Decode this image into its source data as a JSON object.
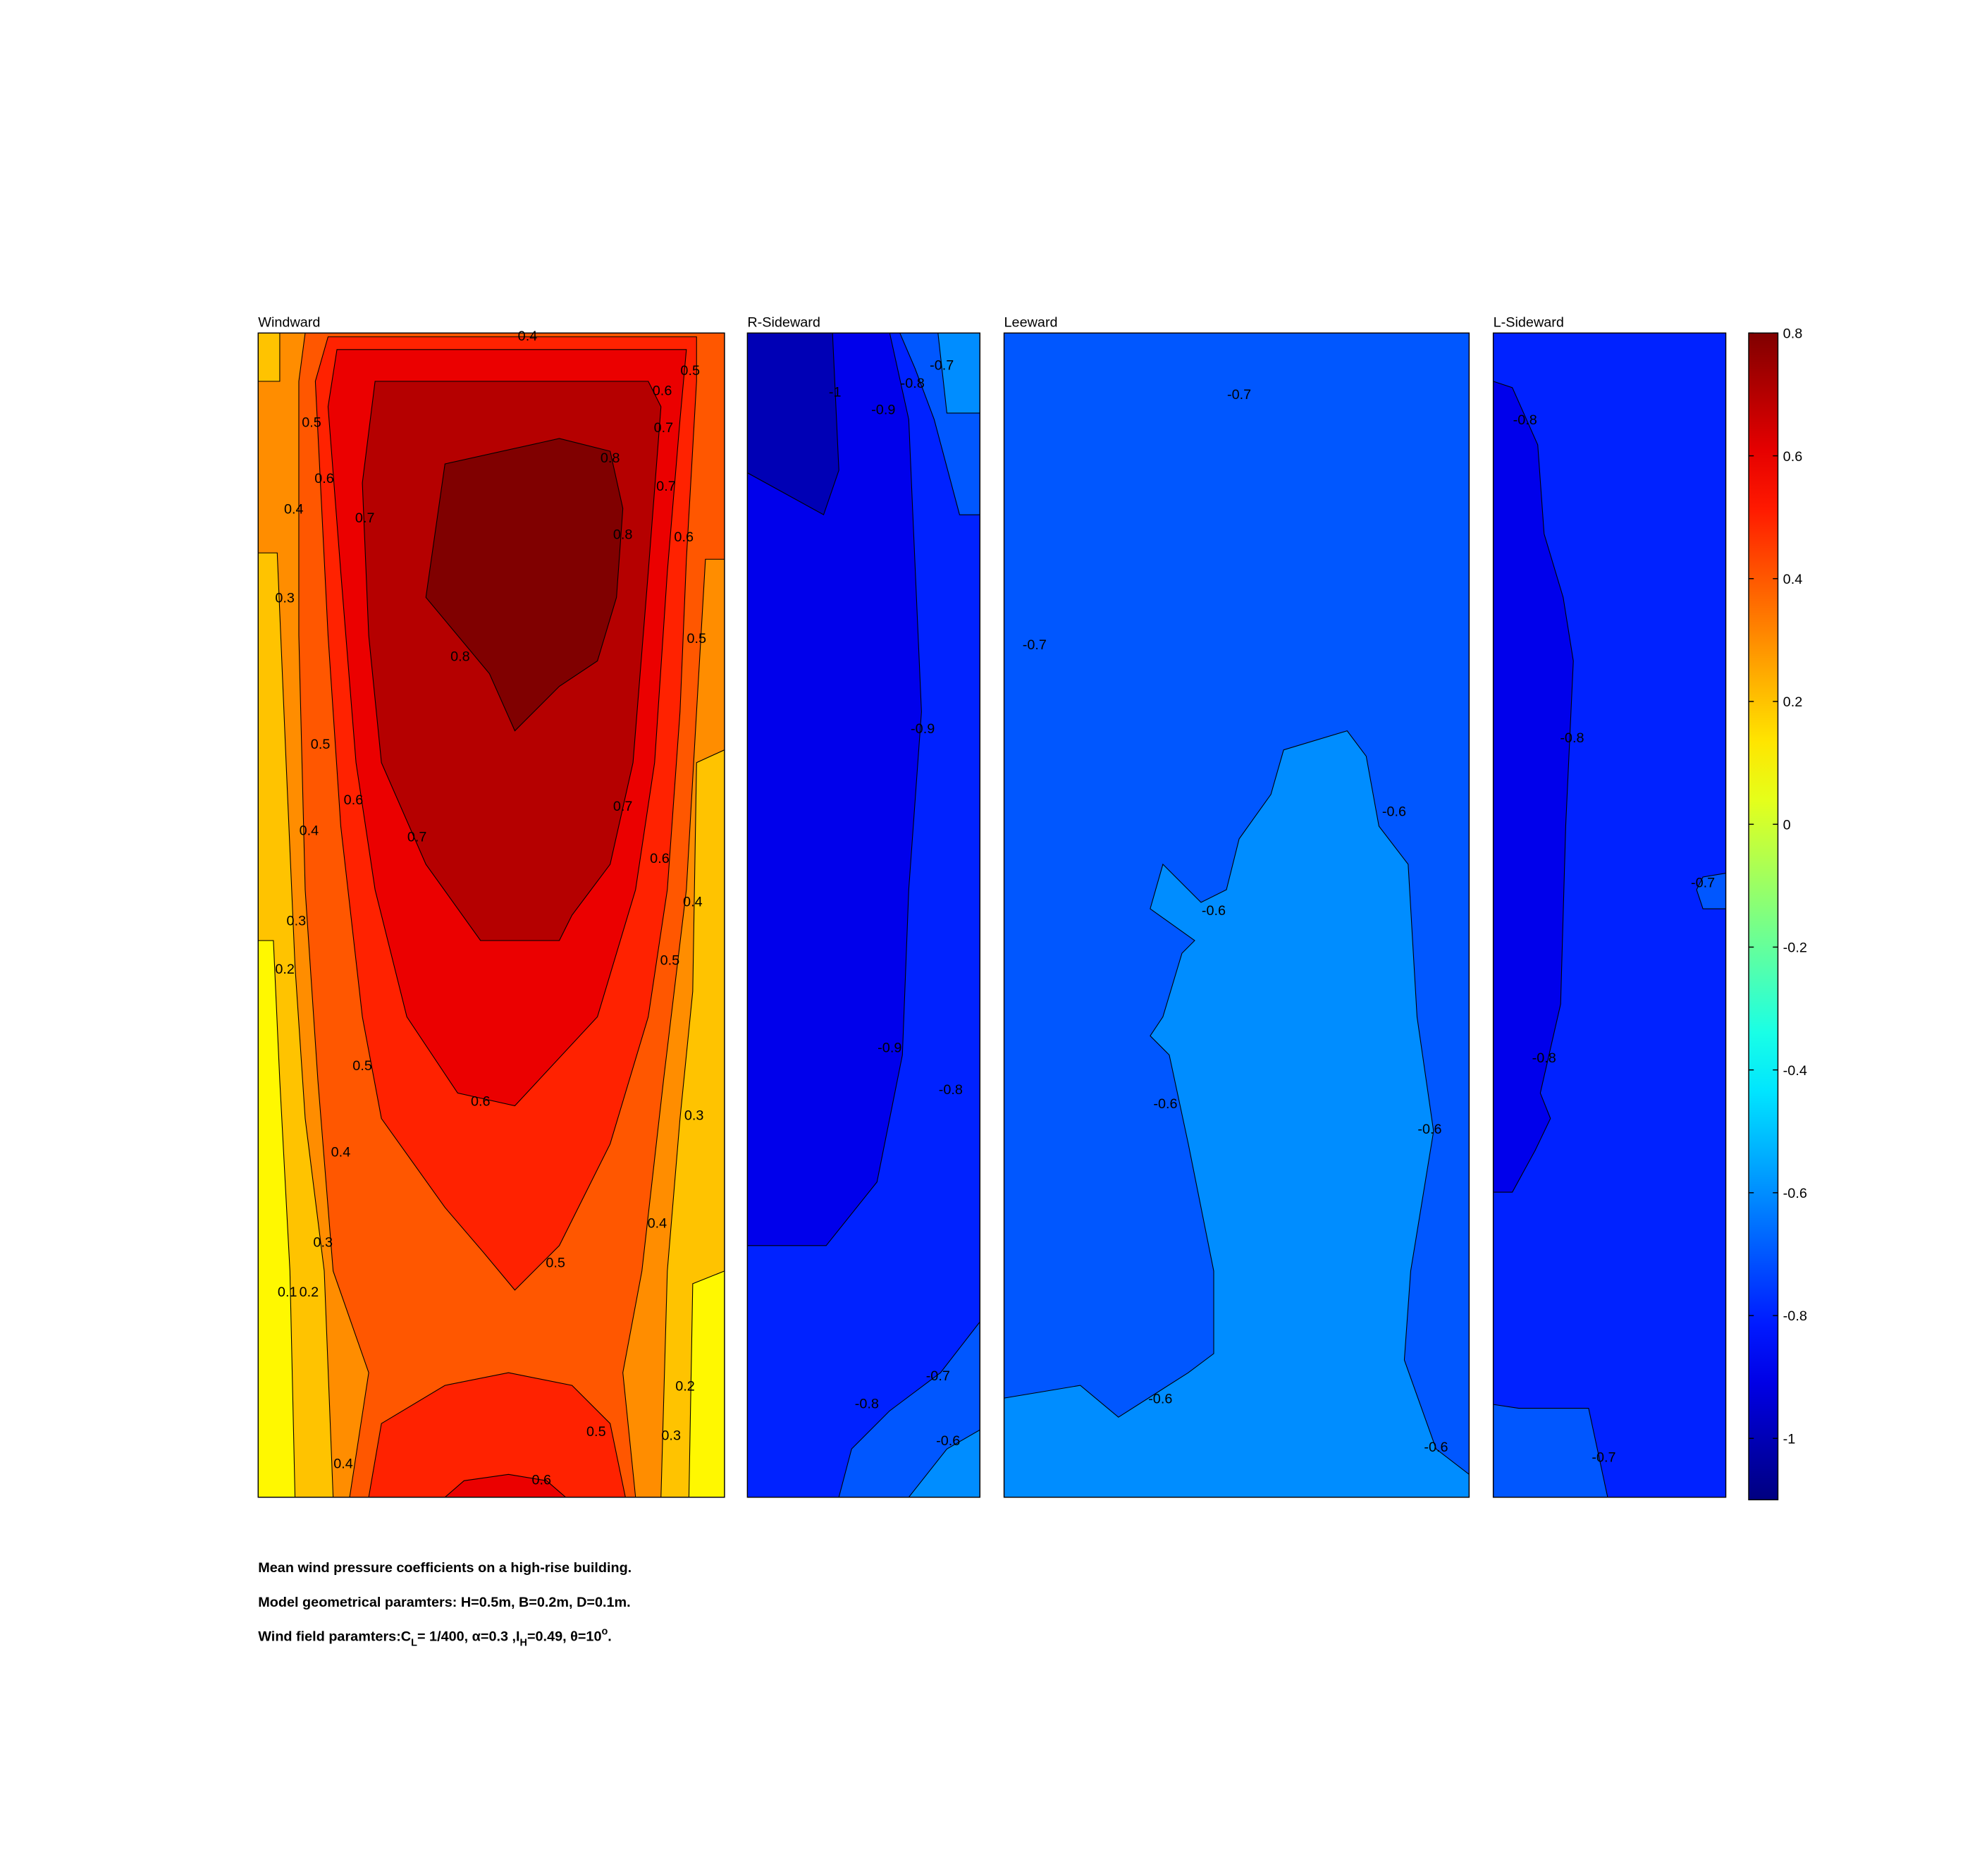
{
  "chart_data": {
    "type": "contour",
    "panels": [
      {
        "title": "Windward",
        "levels": [
          0.1,
          0.2,
          0.3,
          0.4,
          0.5,
          0.6,
          0.7,
          0.8
        ],
        "labels": [
          0.4,
          0.5,
          0.5,
          0.6,
          0.7,
          0.6,
          0.8,
          0.7,
          0.4,
          0.7,
          0.8,
          0.6,
          0.3,
          0.5,
          0.8,
          0.5,
          0.6,
          0.7,
          0.4,
          0.7,
          0.6,
          0.4,
          0.3,
          0.5,
          0.2,
          0.5,
          0.6,
          0.3,
          0.4,
          0.4,
          0.3,
          0.5,
          0.1,
          0.2,
          0.2,
          0.5,
          0.3,
          0.4,
          0.6
        ]
      },
      {
        "title": "R-Sideward",
        "levels": [
          -1,
          -0.9,
          -0.8,
          -0.7,
          -0.6
        ],
        "labels": [
          -0.7,
          -0.8,
          -0.9,
          -1,
          -0.9,
          -0.9,
          -0.8,
          -0.7,
          -0.8,
          -0.6
        ]
      },
      {
        "title": "Leeward",
        "levels": [
          -0.7,
          -0.6
        ],
        "labels": [
          -0.7,
          -0.7,
          -0.6,
          -0.6,
          -0.6,
          -0.6,
          -0.6,
          -0.6
        ]
      },
      {
        "title": "L-Sideward",
        "levels": [
          -0.9,
          -0.8,
          -0.7
        ],
        "labels": [
          -0.8,
          -0.8,
          -0.7,
          -0.8,
          -0.7
        ]
      }
    ],
    "colorbar": {
      "clim": [
        -1.1,
        0.8
      ],
      "ticks": [
        0.8,
        0.6,
        0.4,
        0.2,
        0,
        -0.2,
        -0.4,
        -0.6,
        -0.8,
        -1
      ]
    },
    "caption": [
      "Mean wind pressure coefficients on a high-rise building.",
      "Model geometrical paramters: H=0.5m, B=0.2m, D=0.1m.",
      [
        "Wind field paramters:C",
        "L",
        "= 1/400, α=0.3 ,I",
        "H",
        "=0.49, θ=10",
        "o",
        "."
      ]
    ]
  }
}
